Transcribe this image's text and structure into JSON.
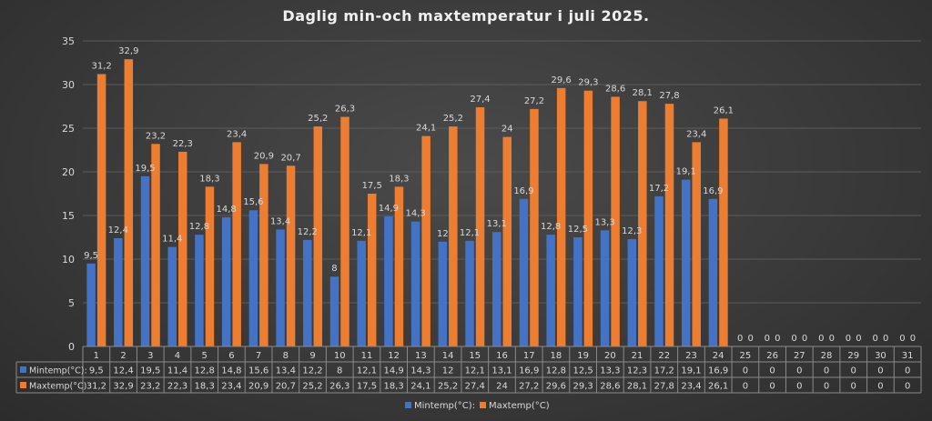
{
  "chart_data": {
    "type": "bar",
    "title": "Daglig min-och maxtemperatur i juli 2025.",
    "xlabel": "",
    "ylabel": "",
    "ylim": [
      0,
      35
    ],
    "yticks": [
      0,
      5,
      10,
      15,
      20,
      25,
      30,
      35
    ],
    "grid": true,
    "legend": "bottom",
    "data_table": true,
    "categories": [
      "1",
      "2",
      "3",
      "4",
      "5",
      "6",
      "7",
      "8",
      "9",
      "10",
      "11",
      "12",
      "13",
      "14",
      "15",
      "16",
      "17",
      "18",
      "19",
      "20",
      "21",
      "22",
      "23",
      "24",
      "25",
      "26",
      "27",
      "28",
      "29",
      "30",
      "31"
    ],
    "series": [
      {
        "name": "Mintemp(°C):",
        "color": "#4472C4",
        "values": [
          9.5,
          12.4,
          19.5,
          11.4,
          12.8,
          14.8,
          15.6,
          13.4,
          12.2,
          8,
          12.1,
          14.9,
          14.3,
          12,
          12.1,
          13.1,
          16.9,
          12.8,
          12.5,
          13.3,
          12.3,
          17.2,
          19.1,
          16.9,
          0,
          0,
          0,
          0,
          0,
          0,
          0
        ],
        "labels": [
          "9,5",
          "12,4",
          "19,5",
          "11,4",
          "12,8",
          "14,8",
          "15,6",
          "13,4",
          "12,2",
          "8",
          "12,1",
          "14,9",
          "14,3",
          "12",
          "12,1",
          "13,1",
          "16,9",
          "12,8",
          "12,5",
          "13,3",
          "12,3",
          "17,2",
          "19,1",
          "16,9",
          "0",
          "0",
          "0",
          "0",
          "0",
          "0",
          "0"
        ]
      },
      {
        "name": "Maxtemp(°C)",
        "color": "#ED7D31",
        "values": [
          31.2,
          32.9,
          23.2,
          22.3,
          18.3,
          23.4,
          20.9,
          20.7,
          25.2,
          26.3,
          17.5,
          18.3,
          24.1,
          25.2,
          27.4,
          24,
          27.2,
          29.6,
          29.3,
          28.6,
          28.1,
          27.8,
          23.4,
          26.1,
          0,
          0,
          0,
          0,
          0,
          0,
          0
        ],
        "labels": [
          "31,2",
          "32,9",
          "23,2",
          "22,3",
          "18,3",
          "23,4",
          "20,9",
          "20,7",
          "25,2",
          "26,3",
          "17,5",
          "18,3",
          "24,1",
          "25,2",
          "27,4",
          "24",
          "27,2",
          "29,6",
          "29,3",
          "28,6",
          "28,1",
          "27,8",
          "23,4",
          "26,1",
          "0",
          "0",
          "0",
          "0",
          "0",
          "0",
          "0"
        ]
      }
    ]
  }
}
